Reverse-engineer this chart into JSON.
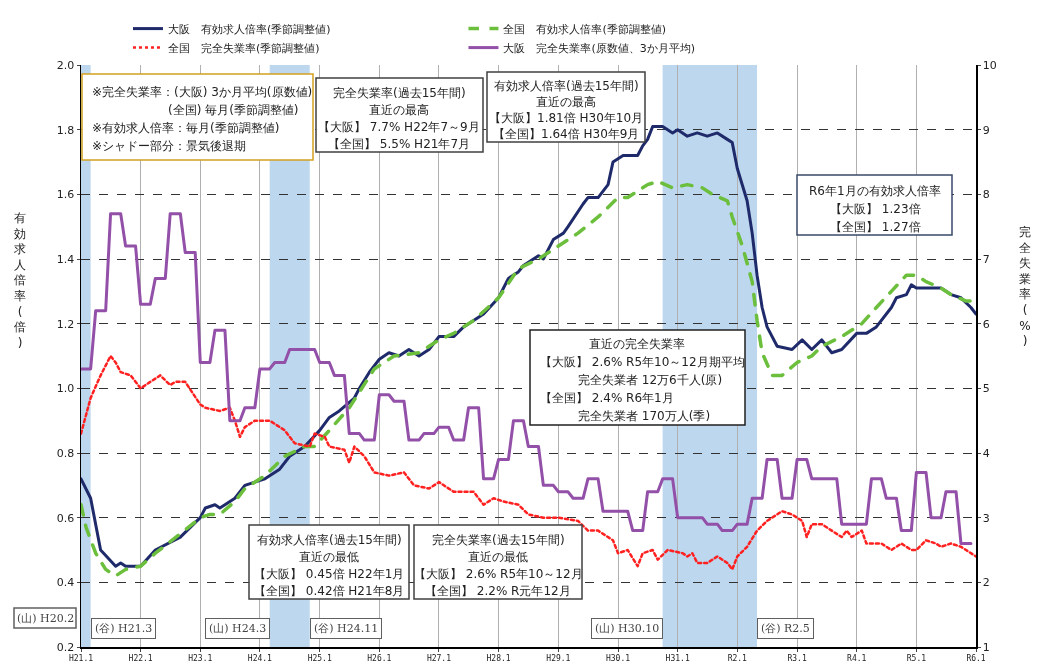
{
  "chart_data": {
    "type": "line",
    "ylabel": "有効求人倍率(倍)",
    "y2label": "完全失業率(%)",
    "xlim": [
      "2009-01",
      "2024-01"
    ],
    "xticks": [
      {
        "value": "2009-01",
        "label": "H21.1"
      },
      {
        "value": "2010-01",
        "label": "H22.1"
      },
      {
        "value": "2011-01",
        "label": "H23.1"
      },
      {
        "value": "2012-01",
        "label": "H24.1"
      },
      {
        "value": "2013-01",
        "label": "H25.1"
      },
      {
        "value": "2014-01",
        "label": "H26.1"
      },
      {
        "value": "2015-01",
        "label": "H27.1"
      },
      {
        "value": "2016-01",
        "label": "H28.1"
      },
      {
        "value": "2017-01",
        "label": "H29.1"
      },
      {
        "value": "2018-01",
        "label": "H30.1"
      },
      {
        "value": "2019-01",
        "label": "H31.1"
      },
      {
        "value": "2020-01",
        "label": "R2.1"
      },
      {
        "value": "2021-01",
        "label": "R3.1"
      },
      {
        "value": "2022-01",
        "label": "R4.1"
      },
      {
        "value": "2023-01",
        "label": "R5.1"
      },
      {
        "value": "2024-01",
        "label": "R6.1"
      }
    ],
    "ylim": [
      0.2,
      2.0
    ],
    "yticks": [
      0.2,
      0.4,
      0.6,
      0.8,
      {
        "value": 1.0,
        "label": "1.0"
      },
      1.2,
      1.4,
      1.6,
      1.8,
      {
        "value": 2.0,
        "label": "2.0"
      }
    ],
    "y2lim": [
      1,
      10
    ],
    "y2ticks": [
      1,
      2,
      3,
      4,
      5,
      6,
      7,
      8,
      9,
      10
    ],
    "grid": true,
    "legend": "top",
    "marker": "none",
    "series": [
      {
        "name": "大阪　有効求人倍率(季節調整値)",
        "color": "#1f2a6b",
        "line_style": "solid",
        "x": [
          "2009-01",
          "2009-03",
          "2009-05",
          "2009-08",
          "2009-09",
          "2009-10",
          "2010-01",
          "2010-04",
          "2010-09",
          "2011-01",
          "2011-02",
          "2011-04",
          "2011-05",
          "2011-06",
          "2011-08",
          "2011-10",
          "2011-12",
          "2012-02",
          "2012-05",
          "2012-07",
          "2012-10",
          "2013-01",
          "2013-03",
          "2013-05",
          "2013-08",
          "2013-09",
          "2013-11",
          "2014-01",
          "2014-03",
          "2014-05",
          "2014-07",
          "2014-09",
          "2014-11",
          "2015-01",
          "2015-04",
          "2015-06",
          "2015-10",
          "2016-01",
          "2016-03",
          "2016-05",
          "2016-06",
          "2016-09",
          "2016-10",
          "2016-12",
          "2017-02",
          "2017-03",
          "2017-06",
          "2017-07",
          "2017-09",
          "2017-11",
          "2017-12",
          "2018-02",
          "2018-05",
          "2018-06",
          "2018-07",
          "2018-08",
          "2018-10",
          "2018-12",
          "2019-01",
          "2019-03",
          "2019-05",
          "2019-07",
          "2019-09",
          "2019-11",
          "2019-12",
          "2020-01",
          "2020-03",
          "2020-04",
          "2020-05",
          "2020-06",
          "2020-07",
          "2020-09",
          "2020-12",
          "2021-02",
          "2021-04",
          "2021-06",
          "2021-08",
          "2021-10",
          "2022-01",
          "2022-03",
          "2022-05",
          "2022-08",
          "2022-09",
          "2022-11",
          "2022-12",
          "2023-01",
          "2023-06",
          "2023-08",
          "2023-10",
          "2023-12",
          "2024-01"
        ],
        "values": [
          0.72,
          0.66,
          0.5,
          0.45,
          0.46,
          0.45,
          0.45,
          0.5,
          0.54,
          0.6,
          0.63,
          0.64,
          0.63,
          0.64,
          0.66,
          0.7,
          0.71,
          0.72,
          0.75,
          0.79,
          0.82,
          0.87,
          0.91,
          0.93,
          0.97,
          1.0,
          1.05,
          1.09,
          1.11,
          1.1,
          1.12,
          1.1,
          1.12,
          1.16,
          1.16,
          1.19,
          1.23,
          1.28,
          1.34,
          1.36,
          1.38,
          1.41,
          1.4,
          1.46,
          1.48,
          1.5,
          1.57,
          1.59,
          1.59,
          1.63,
          1.7,
          1.72,
          1.72,
          1.75,
          1.77,
          1.81,
          1.81,
          1.79,
          1.8,
          1.78,
          1.79,
          1.78,
          1.79,
          1.77,
          1.76,
          1.68,
          1.58,
          1.48,
          1.35,
          1.25,
          1.19,
          1.13,
          1.12,
          1.15,
          1.12,
          1.15,
          1.11,
          1.12,
          1.17,
          1.17,
          1.19,
          1.25,
          1.28,
          1.29,
          1.32,
          1.31,
          1.31,
          1.29,
          1.28,
          1.25,
          1.23
        ]
      },
      {
        "name": "全国　有効求人倍率(季節調整値)",
        "color": "#6cbf3c",
        "line_style": "dashed",
        "x": [
          "2009-01",
          "2009-02",
          "2009-04",
          "2009-06",
          "2009-08",
          "2009-10",
          "2010-01",
          "2010-04",
          "2010-09",
          "2011-01",
          "2011-03",
          "2011-05",
          "2011-08",
          "2011-10",
          "2012-02",
          "2012-06",
          "2012-10",
          "2012-12",
          "2013-03",
          "2013-07",
          "2013-12",
          "2014-04",
          "2014-09",
          "2015-01",
          "2015-04",
          "2015-08",
          "2016-01",
          "2016-05",
          "2016-09",
          "2017-01",
          "2017-05",
          "2017-09",
          "2018-01",
          "2018-03",
          "2018-07",
          "2018-09",
          "2018-12",
          "2019-03",
          "2019-06",
          "2019-08",
          "2019-11",
          "2019-12",
          "2020-02",
          "2020-04",
          "2020-05",
          "2020-06",
          "2020-08",
          "2020-10",
          "2021-01",
          "2021-04",
          "2021-06",
          "2021-10",
          "2022-02",
          "2022-05",
          "2022-08",
          "2022-11",
          "2023-01",
          "2023-03",
          "2023-06",
          "2023-08",
          "2023-11",
          "2024-01"
        ],
        "values": [
          0.64,
          0.57,
          0.49,
          0.44,
          0.42,
          0.44,
          0.45,
          0.49,
          0.55,
          0.6,
          0.61,
          0.61,
          0.65,
          0.69,
          0.73,
          0.79,
          0.82,
          0.82,
          0.87,
          0.94,
          1.06,
          1.1,
          1.11,
          1.15,
          1.17,
          1.21,
          1.28,
          1.37,
          1.4,
          1.44,
          1.48,
          1.53,
          1.59,
          1.59,
          1.63,
          1.64,
          1.62,
          1.63,
          1.62,
          1.6,
          1.58,
          1.53,
          1.44,
          1.33,
          1.21,
          1.11,
          1.04,
          1.04,
          1.08,
          1.1,
          1.13,
          1.16,
          1.2,
          1.25,
          1.3,
          1.35,
          1.35,
          1.33,
          1.31,
          1.29,
          1.27,
          1.27
        ]
      },
      {
        "name": "全国　完全失業率(季節調整値)",
        "color": "#ff2020",
        "line_style": "dotted",
        "axis": "y2",
        "x": [
          "2009-01",
          "2009-03",
          "2009-05",
          "2009-07",
          "2009-08",
          "2009-09",
          "2009-11",
          "2010-01",
          "2010-03",
          "2010-05",
          "2010-07",
          "2010-08",
          "2010-10",
          "2011-01",
          "2011-02",
          "2011-05",
          "2011-07",
          "2011-08",
          "2011-09",
          "2011-10",
          "2011-12",
          "2012-03",
          "2012-06",
          "2012-08",
          "2012-11",
          "2012-12",
          "2013-02",
          "2013-03",
          "2013-06",
          "2013-07",
          "2013-08",
          "2013-10",
          "2013-12",
          "2014-03",
          "2014-06",
          "2014-08",
          "2014-11",
          "2015-01",
          "2015-04",
          "2015-08",
          "2015-10",
          "2015-12",
          "2016-02",
          "2016-05",
          "2016-07",
          "2016-10",
          "2017-01",
          "2017-05",
          "2017-07",
          "2017-09",
          "2017-12",
          "2018-01",
          "2018-03",
          "2018-05",
          "2018-06",
          "2018-08",
          "2018-09",
          "2018-11",
          "2019-02",
          "2019-03",
          "2019-04",
          "2019-05",
          "2019-07",
          "2019-09",
          "2019-11",
          "2019-12",
          "2020-01",
          "2020-03",
          "2020-05",
          "2020-07",
          "2020-10",
          "2020-12",
          "2021-02",
          "2021-03",
          "2021-04",
          "2021-06",
          "2021-10",
          "2021-11",
          "2021-12",
          "2022-02",
          "2022-03",
          "2022-06",
          "2022-08",
          "2022-10",
          "2022-12",
          "2023-01",
          "2023-03",
          "2023-05",
          "2023-06",
          "2023-08",
          "2023-10",
          "2023-11",
          "2024-01"
        ],
        "values": [
          4.3,
          4.85,
          5.2,
          5.5,
          5.4,
          5.25,
          5.2,
          5.0,
          5.1,
          5.2,
          5.05,
          5.1,
          5.1,
          4.75,
          4.7,
          4.65,
          4.7,
          4.5,
          4.25,
          4.4,
          4.5,
          4.5,
          4.35,
          4.15,
          4.1,
          4.3,
          4.25,
          4.1,
          4.05,
          3.85,
          4.1,
          3.95,
          3.7,
          3.65,
          3.7,
          3.5,
          3.45,
          3.55,
          3.4,
          3.4,
          3.2,
          3.3,
          3.25,
          3.2,
          3.05,
          3.0,
          3.0,
          2.95,
          2.8,
          2.8,
          2.65,
          2.45,
          2.5,
          2.25,
          2.45,
          2.5,
          2.35,
          2.5,
          2.45,
          2.4,
          2.45,
          2.3,
          2.3,
          2.4,
          2.3,
          2.2,
          2.4,
          2.55,
          2.8,
          2.95,
          3.1,
          3.05,
          2.95,
          2.7,
          2.9,
          2.9,
          2.7,
          2.8,
          2.7,
          2.8,
          2.6,
          2.6,
          2.5,
          2.6,
          2.5,
          2.5,
          2.65,
          2.6,
          2.55,
          2.6,
          2.55,
          2.5,
          2.4
        ]
      },
      {
        "name": "大阪　完全失業率(原数値、3か月平均)",
        "color": "#9350a8",
        "line_style": "solid",
        "axis": "y2",
        "x": [
          "2009-01",
          "2009-03",
          "2009-04",
          "2009-06",
          "2009-07",
          "2009-09",
          "2009-10",
          "2009-12",
          "2010-01",
          "2010-03",
          "2010-04",
          "2010-06",
          "2010-07",
          "2010-09",
          "2010-10",
          "2010-12",
          "2011-01",
          "2011-03",
          "2011-04",
          "2011-06",
          "2011-07",
          "2011-09",
          "2011-10",
          "2011-12",
          "2012-01",
          "2012-03",
          "2012-04",
          "2012-06",
          "2012-07",
          "2012-09",
          "2012-10",
          "2012-12",
          "2013-01",
          "2013-03",
          "2013-04",
          "2013-06",
          "2013-07",
          "2013-09",
          "2013-10",
          "2013-12",
          "2014-01",
          "2014-03",
          "2014-04",
          "2014-06",
          "2014-07",
          "2014-09",
          "2014-10",
          "2014-12",
          "2015-01",
          "2015-03",
          "2015-04",
          "2015-06",
          "2015-07",
          "2015-09",
          "2015-10",
          "2015-12",
          "2016-01",
          "2016-03",
          "2016-04",
          "2016-06",
          "2016-07",
          "2016-09",
          "2016-10",
          "2016-12",
          "2017-01",
          "2017-03",
          "2017-04",
          "2017-06",
          "2017-07",
          "2017-09",
          "2017-10",
          "2017-12",
          "2018-01",
          "2018-03",
          "2018-04",
          "2018-06",
          "2018-07",
          "2018-09",
          "2018-10",
          "2018-12",
          "2019-01",
          "2019-03",
          "2019-04",
          "2019-06",
          "2019-07",
          "2019-09",
          "2019-10",
          "2019-12",
          "2020-01",
          "2020-03",
          "2020-04",
          "2020-06",
          "2020-07",
          "2020-09",
          "2020-10",
          "2020-12",
          "2021-01",
          "2021-03",
          "2021-04",
          "2021-06",
          "2021-07",
          "2021-09",
          "2021-10",
          "2021-12",
          "2022-01",
          "2022-03",
          "2022-04",
          "2022-06",
          "2022-07",
          "2022-09",
          "2022-10",
          "2022-12",
          "2023-01",
          "2023-03",
          "2023-04",
          "2023-06",
          "2023-07",
          "2023-09",
          "2023-10",
          "2023-12"
        ],
        "values": [
          5.3,
          5.3,
          6.2,
          6.2,
          7.7,
          7.7,
          7.2,
          7.2,
          6.3,
          6.3,
          6.7,
          6.7,
          7.7,
          7.7,
          7.1,
          7.1,
          5.4,
          5.4,
          5.9,
          5.9,
          4.5,
          4.5,
          4.7,
          4.7,
          5.3,
          5.3,
          5.4,
          5.4,
          5.6,
          5.6,
          5.6,
          5.6,
          5.4,
          5.4,
          5.2,
          5.2,
          4.3,
          4.3,
          4.2,
          4.2,
          4.9,
          4.9,
          4.8,
          4.8,
          4.2,
          4.2,
          4.3,
          4.3,
          4.4,
          4.4,
          4.2,
          4.2,
          4.7,
          4.7,
          3.6,
          3.6,
          3.9,
          3.9,
          4.5,
          4.5,
          4.1,
          4.1,
          3.5,
          3.5,
          3.4,
          3.4,
          3.3,
          3.3,
          3.6,
          3.6,
          3.1,
          3.1,
          3.1,
          3.1,
          2.8,
          2.8,
          3.4,
          3.4,
          3.6,
          3.6,
          3.0,
          3.0,
          3.0,
          3.0,
          2.9,
          2.9,
          2.8,
          2.8,
          2.9,
          2.9,
          3.3,
          3.3,
          3.9,
          3.9,
          3.3,
          3.3,
          3.9,
          3.9,
          3.6,
          3.6,
          3.6,
          3.6,
          2.9,
          2.9,
          2.9,
          2.9,
          3.6,
          3.6,
          3.3,
          3.3,
          2.8,
          2.8,
          3.7,
          3.7,
          3.0,
          3.0,
          3.4,
          3.4,
          2.6,
          2.6
        ]
      }
    ],
    "bands": [
      {
        "axis": "x",
        "from": "2009-01",
        "to": "2009-03",
        "color": "#bdd7ee"
      },
      {
        "axis": "x",
        "from": "2012-03",
        "to": "2012-11",
        "color": "#bdd7ee"
      },
      {
        "axis": "x",
        "from": "2018-10",
        "to": "2020-05",
        "color": "#bdd7ee"
      }
    ],
    "annotations": [
      "※完全失業率：(大阪) 3か月平均(原数値)",
      "(全国) 毎月(季節調整値)",
      "※有効求人倍率：毎月(季節調整値)",
      "※シャドー部分：景気後退期",
      "完全失業率(過去15年間)",
      "直近の最高",
      "【大阪】 7.7% H22年7～9月",
      "【全国】 5.5% H21年7月",
      "有効求人倍率(過去15年間)",
      "直近の最高",
      "【大阪】1.81倍 H30年10月",
      "【全国】1.64倍 H30年9月",
      "R6年1月の有効求人倍率",
      "【大阪】 1.23倍",
      "【全国】 1.27倍",
      "直近の完全失業率",
      "【大阪】 2.6% R5年10～12月期平均",
      "完全失業者 12万6千人(原)",
      "【全国】 2.4% R6年1月",
      "完全失業者 170万人(季)",
      "有効求人倍率(過去15年間)",
      "直近の最低",
      "【大阪】 0.45倍 H22年1月",
      "【全国】 0.42倍 H21年8月",
      "完全失業率(過去15年間)",
      "直近の最低",
      "【大阪】 2.6% R5年10～12月",
      "【全国】 2.2% R元年12月",
      "(山) H20.2",
      {
        "text": "(谷) H21.3",
        "x": "2009-03",
        "y": 0.29
      },
      {
        "text": "(山) H24.3",
        "x": "2012-03",
        "y": 0.29
      },
      {
        "text": "(谷) H24.11",
        "x": "2012-11",
        "y": 0.29
      },
      {
        "text": "(山) H30.10",
        "x": "2018-10",
        "y": 0.29
      },
      {
        "text": "(谷) R2.5",
        "x": "2020-05",
        "y": 0.29
      }
    ]
  }
}
